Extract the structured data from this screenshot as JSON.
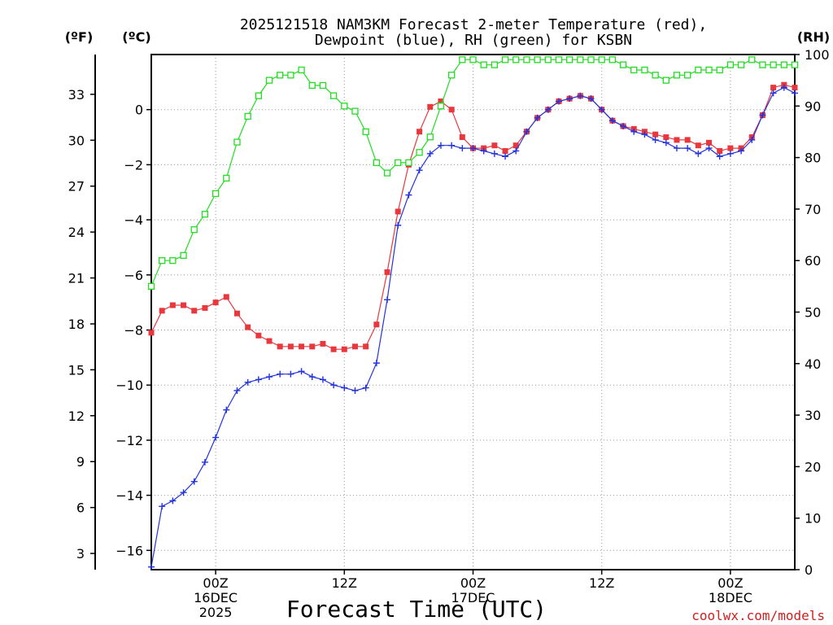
{
  "chart_data": {
    "type": "line",
    "title_line1": "2025121518 NAM3KM Forecast 2-meter Temperature (red),",
    "title_line2": "Dewpoint (blue), RH (green) for KSBN",
    "xlabel": "Forecast Time (UTC)",
    "credit": "coolwx.com/models",
    "units": {
      "fahrenheit": "(ºF)",
      "celsius": "(ºC)",
      "rh": "(RH)"
    },
    "x_hours_range": [
      0,
      60
    ],
    "x_ticks": [
      {
        "hour": 6,
        "lines": [
          "00Z",
          "16DEC",
          "2025"
        ]
      },
      {
        "hour": 18,
        "lines": [
          "12Z"
        ]
      },
      {
        "hour": 30,
        "lines": [
          "00Z",
          "17DEC"
        ]
      },
      {
        "hour": 42,
        "lines": [
          "12Z"
        ]
      },
      {
        "hour": 54,
        "lines": [
          "00Z",
          "18DEC"
        ]
      }
    ],
    "celsius_axis": {
      "range": [
        -16.7,
        2.0
      ],
      "ticks": [
        "-16",
        "-14",
        "-12",
        "-10",
        "-8",
        "-6",
        "-4",
        "-2",
        "0"
      ]
    },
    "fahrenheit_axis": {
      "ticks": [
        "3",
        "6",
        "9",
        "12",
        "15",
        "18",
        "21",
        "24",
        "27",
        "30",
        "33"
      ]
    },
    "rh_axis": {
      "range": [
        0,
        100
      ],
      "ticks": [
        "0",
        "10",
        "20",
        "30",
        "40",
        "50",
        "60",
        "70",
        "80",
        "90",
        "100"
      ]
    },
    "hours": [
      0,
      1,
      2,
      3,
      4,
      5,
      6,
      7,
      8,
      9,
      10,
      11,
      12,
      13,
      14,
      15,
      16,
      17,
      18,
      19,
      20,
      21,
      22,
      23,
      24,
      25,
      26,
      27,
      28,
      29,
      30,
      31,
      32,
      33,
      34,
      35,
      36,
      37,
      38,
      39,
      40,
      41,
      42,
      43,
      44,
      45,
      46,
      47,
      48,
      49,
      50,
      51,
      52,
      53,
      54,
      55,
      56,
      57,
      58,
      59,
      60
    ],
    "series": [
      {
        "name": "Temperature",
        "color": "#e8383d",
        "marker": "square",
        "axis": "celsius",
        "values": [
          -8.1,
          -7.3,
          -7.1,
          -7.1,
          -7.3,
          -7.2,
          -7.0,
          -6.8,
          -7.4,
          -7.9,
          -8.2,
          -8.4,
          -8.6,
          -8.6,
          -8.6,
          -8.6,
          -8.5,
          -8.7,
          -8.7,
          -8.6,
          -8.6,
          -7.8,
          -5.9,
          -3.7,
          -2.0,
          -0.8,
          0.1,
          0.3,
          0.0,
          -1.0,
          -1.4,
          -1.4,
          -1.3,
          -1.5,
          -1.3,
          -0.8,
          -0.3,
          0.0,
          0.3,
          0.4,
          0.5,
          0.4,
          0.0,
          -0.4,
          -0.6,
          -0.7,
          -0.8,
          -0.9,
          -1.0,
          -1.1,
          -1.1,
          -1.3,
          -1.2,
          -1.5,
          -1.4,
          -1.4,
          -1.0,
          -0.2,
          0.8,
          0.9,
          0.8
        ]
      },
      {
        "name": "Dewpoint",
        "color": "#2233dd",
        "marker": "plus",
        "axis": "celsius",
        "values": [
          -16.6,
          -14.4,
          -14.2,
          -13.9,
          -13.5,
          -12.8,
          -11.9,
          -10.9,
          -10.2,
          -9.9,
          -9.8,
          -9.7,
          -9.6,
          -9.6,
          -9.5,
          -9.7,
          -9.8,
          -10.0,
          -10.1,
          -10.2,
          -10.1,
          -9.2,
          -6.9,
          -4.2,
          -3.1,
          -2.2,
          -1.6,
          -1.3,
          -1.3,
          -1.4,
          -1.4,
          -1.5,
          -1.6,
          -1.7,
          -1.5,
          -0.8,
          -0.3,
          0.0,
          0.3,
          0.4,
          0.5,
          0.4,
          0.0,
          -0.4,
          -0.6,
          -0.8,
          -0.9,
          -1.1,
          -1.2,
          -1.4,
          -1.4,
          -1.6,
          -1.4,
          -1.7,
          -1.6,
          -1.5,
          -1.1,
          -0.2,
          0.6,
          0.8,
          0.6
        ]
      },
      {
        "name": "RH",
        "color": "#22dd22",
        "marker": "open-square",
        "axis": "rh",
        "values": [
          55,
          60,
          60,
          61,
          66,
          69,
          73,
          76,
          83,
          88,
          92,
          95,
          96,
          96,
          97,
          94,
          94,
          92,
          90,
          89,
          85,
          79,
          77,
          79,
          79,
          81,
          84,
          90,
          96,
          99,
          99,
          98,
          98,
          99,
          99,
          99,
          99,
          99,
          99,
          99,
          99,
          99,
          99,
          99,
          98,
          97,
          97,
          96,
          95,
          96,
          96,
          97,
          97,
          97,
          98,
          98,
          99,
          98,
          98,
          98,
          98
        ]
      }
    ]
  }
}
